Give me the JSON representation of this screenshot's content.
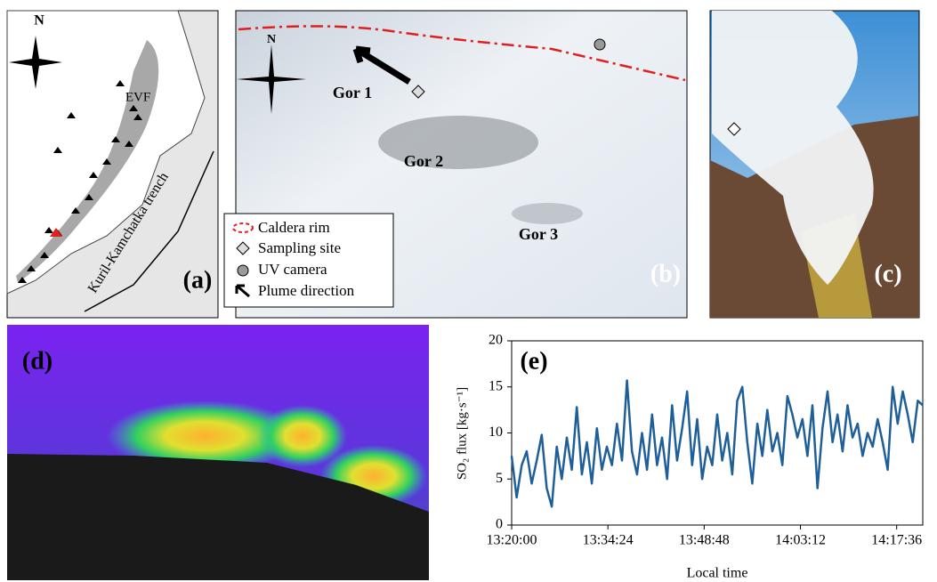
{
  "panel_a": {
    "north": "N",
    "region": "EVF",
    "trench": "Kuril-Kamchatka trench",
    "label": "(a)"
  },
  "panel_b": {
    "north": "N",
    "vents": [
      "Gor 1",
      "Gor 2",
      "Gor 3"
    ],
    "label": "(b)",
    "legend": [
      "Caldera rim",
      "Sampling site",
      "UV camera",
      "Plume direction"
    ]
  },
  "panel_c": {
    "label": "(c)"
  },
  "panel_d": {
    "label": "(d)"
  },
  "chart_data": {
    "type": "line",
    "panel_label": "(e)",
    "y_label": "SO₂ flux [kg·s⁻¹]",
    "x_label": "Local time",
    "color": "#1f5f99",
    "x": [
      48000,
      48045,
      48090,
      48135,
      48180,
      48225,
      48270,
      48315,
      48360,
      48405,
      48450,
      48495,
      48540,
      48585,
      48630,
      48675,
      48720,
      48765,
      48810,
      48855,
      48900,
      48945,
      48990,
      49035,
      49080,
      49125,
      49170,
      49215,
      49260,
      49305,
      49350,
      49395,
      49440,
      49485,
      49530,
      49575,
      49620,
      49665,
      49710,
      49755,
      49800,
      49845,
      49890,
      49935,
      49980,
      50025,
      50070,
      50115,
      50160,
      50205,
      50250,
      50295,
      50340,
      50385,
      50430,
      50475,
      50520,
      50565,
      50610,
      50655,
      50700,
      50745,
      50790,
      50835,
      50880,
      50925,
      50970,
      51015,
      51060,
      51105,
      51150,
      51195,
      51240,
      51285,
      51330,
      51375,
      51420,
      51465,
      51510,
      51555,
      51600,
      51645,
      51690
    ],
    "values": [
      7.5,
      3.0,
      6.5,
      8.0,
      4.5,
      7.0,
      9.8,
      4.0,
      2.0,
      8.5,
      5.0,
      9.5,
      6.0,
      12.8,
      5.5,
      9.0,
      4.5,
      10.5,
      6.0,
      8.5,
      6.5,
      11.0,
      7.0,
      15.7,
      8.0,
      5.5,
      10.0,
      6.0,
      12.0,
      6.5,
      9.5,
      5.0,
      13.0,
      7.0,
      10.5,
      14.5,
      6.5,
      11.5,
      5.0,
      8.5,
      6.5,
      12.0,
      7.0,
      10.0,
      5.5,
      13.5,
      15.0,
      9.0,
      4.5,
      11.0,
      7.5,
      12.5,
      8.0,
      10.0,
      6.5,
      14.0,
      12.0,
      9.5,
      11.5,
      7.5,
      13.0,
      4.0,
      10.5,
      14.5,
      9.0,
      12.0,
      8.0,
      13.0,
      9.5,
      11.0,
      7.5,
      10.0,
      8.5,
      11.5,
      9.0,
      6.0,
      15.0,
      11.0,
      14.5,
      12.0,
      9.0,
      13.5,
      13.0
    ],
    "xlim": [
      48000,
      51690
    ],
    "xticks": [
      {
        "value": 48000,
        "label": "13:20:00"
      },
      {
        "value": 48864,
        "label": "13:34:24"
      },
      {
        "value": 49728,
        "label": "13:48:48"
      },
      {
        "value": 50592,
        "label": "14:03:12"
      },
      {
        "value": 51456,
        "label": "14:17:36"
      }
    ],
    "ylim": [
      0,
      20
    ],
    "yticks": [
      0,
      5,
      10,
      15,
      20
    ]
  }
}
